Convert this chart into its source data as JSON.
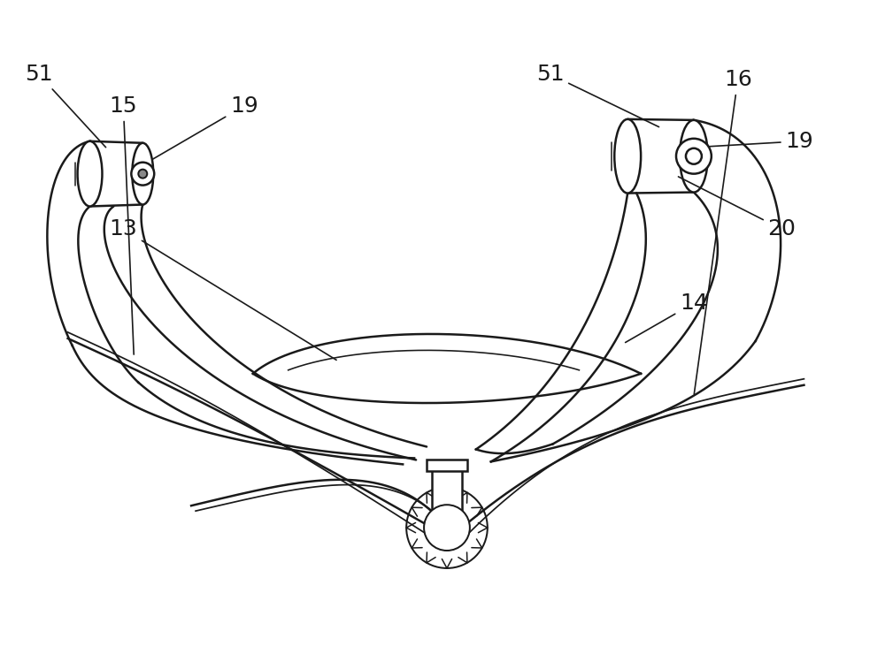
{
  "bg_color": "#ffffff",
  "line_color": "#1a1a1a",
  "lw": 1.8,
  "label_fontsize": 18
}
